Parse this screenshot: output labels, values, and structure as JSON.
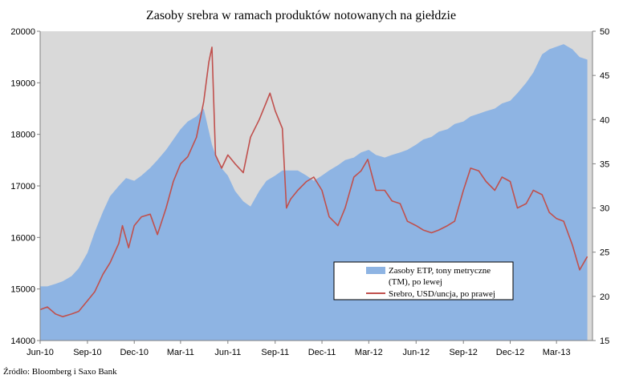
{
  "chart_data": {
    "type": "area+line",
    "title": "Zasoby srebra w ramach produktów notowanych na giełdzie",
    "source": "Źródło: Bloomberg i Saxo Bank",
    "x_ticks": [
      "Jun-10",
      "Sep-10",
      "Dec-10",
      "Mar-11",
      "Jun-11",
      "Sep-11",
      "Dec-11",
      "Mar-12",
      "Jun-12",
      "Sep-12",
      "Dec-12",
      "Mar-13"
    ],
    "y_left": {
      "range": [
        14000,
        20000
      ],
      "ticks": [
        "14000",
        "15000",
        "16000",
        "17000",
        "18000",
        "19000",
        "20000"
      ]
    },
    "y_right": {
      "range": [
        15,
        50
      ],
      "ticks": [
        "15",
        "20",
        "25",
        "30",
        "35",
        "40",
        "45",
        "50"
      ]
    },
    "legend": {
      "placement": "lower-right",
      "area_label_line1": "Zasoby ETP, tony metryczne",
      "area_label_line2": "(TM), po lewej",
      "line_label": "Srebro, USD/uncja, po prawej"
    },
    "colors": {
      "plot_bg": "#d9d9d9",
      "area": "#8eb4e3",
      "line": "#c0504d"
    },
    "series": [
      {
        "name": "Zasoby ETP, tony metryczne (TM), po lewej",
        "axis": "left",
        "kind": "area",
        "x": [
          "2010-06-01",
          "2010-06-15",
          "2010-07-01",
          "2010-07-15",
          "2010-08-01",
          "2010-08-15",
          "2010-09-01",
          "2010-09-15",
          "2010-10-01",
          "2010-10-15",
          "2010-11-01",
          "2010-11-15",
          "2010-12-01",
          "2010-12-15",
          "2011-01-01",
          "2011-01-15",
          "2011-02-01",
          "2011-02-15",
          "2011-03-01",
          "2011-03-15",
          "2011-04-01",
          "2011-04-15",
          "2011-05-01",
          "2011-05-15",
          "2011-06-01",
          "2011-06-15",
          "2011-07-01",
          "2011-07-15",
          "2011-08-01",
          "2011-08-15",
          "2011-09-01",
          "2011-09-15",
          "2011-10-01",
          "2011-10-15",
          "2011-11-01",
          "2011-11-15",
          "2011-12-01",
          "2011-12-15",
          "2012-01-01",
          "2012-01-15",
          "2012-02-01",
          "2012-02-15",
          "2012-03-01",
          "2012-03-15",
          "2012-04-01",
          "2012-04-15",
          "2012-05-01",
          "2012-05-15",
          "2012-06-01",
          "2012-06-15",
          "2012-07-01",
          "2012-07-15",
          "2012-08-01",
          "2012-08-15",
          "2012-09-01",
          "2012-09-15",
          "2012-10-01",
          "2012-10-15",
          "2012-11-01",
          "2012-11-15",
          "2012-12-01",
          "2012-12-15",
          "2013-01-01",
          "2013-01-15",
          "2013-02-01",
          "2013-02-15",
          "2013-03-01",
          "2013-03-15",
          "2013-04-01",
          "2013-04-15",
          "2013-04-30"
        ],
        "values": [
          15050,
          15050,
          15100,
          15150,
          15250,
          15400,
          15700,
          16100,
          16500,
          16800,
          17000,
          17150,
          17100,
          17200,
          17350,
          17500,
          17700,
          17900,
          18100,
          18250,
          18350,
          18500,
          17800,
          17400,
          17200,
          16900,
          16700,
          16600,
          16900,
          17100,
          17200,
          17300,
          17300,
          17300,
          17200,
          17100,
          17200,
          17300,
          17400,
          17500,
          17550,
          17650,
          17700,
          17600,
          17550,
          17600,
          17650,
          17700,
          17800,
          17900,
          17950,
          18050,
          18100,
          18200,
          18250,
          18350,
          18400,
          18450,
          18500,
          18600,
          18650,
          18800,
          19000,
          19200,
          19550,
          19650,
          19700,
          19750,
          19650,
          19500,
          19450
        ]
      },
      {
        "name": "Srebro, USD/uncja, po prawej",
        "axis": "right",
        "kind": "line",
        "x": [
          "2010-06-01",
          "2010-06-15",
          "2010-07-01",
          "2010-07-15",
          "2010-08-01",
          "2010-08-15",
          "2010-09-01",
          "2010-09-15",
          "2010-10-01",
          "2010-10-15",
          "2010-11-01",
          "2010-11-08",
          "2010-11-20",
          "2010-12-01",
          "2010-12-15",
          "2011-01-01",
          "2011-01-15",
          "2011-02-01",
          "2011-02-15",
          "2011-03-01",
          "2011-03-15",
          "2011-04-01",
          "2011-04-15",
          "2011-04-25",
          "2011-05-01",
          "2011-05-08",
          "2011-05-20",
          "2011-06-01",
          "2011-06-15",
          "2011-07-01",
          "2011-07-15",
          "2011-08-01",
          "2011-08-15",
          "2011-08-22",
          "2011-09-01",
          "2011-09-15",
          "2011-09-23",
          "2011-10-01",
          "2011-10-15",
          "2011-11-01",
          "2011-11-15",
          "2011-12-01",
          "2011-12-15",
          "2012-01-01",
          "2012-01-15",
          "2012-02-01",
          "2012-02-15",
          "2012-02-28",
          "2012-03-15",
          "2012-04-01",
          "2012-04-15",
          "2012-05-01",
          "2012-05-15",
          "2012-06-01",
          "2012-06-15",
          "2012-07-01",
          "2012-07-15",
          "2012-08-01",
          "2012-08-15",
          "2012-09-01",
          "2012-09-15",
          "2012-10-01",
          "2012-10-15",
          "2012-11-01",
          "2012-11-15",
          "2012-12-01",
          "2012-12-15",
          "2013-01-01",
          "2013-01-15",
          "2013-02-01",
          "2013-02-15",
          "2013-03-01",
          "2013-03-15",
          "2013-04-01",
          "2013-04-15",
          "2013-04-30"
        ],
        "values": [
          18.5,
          18.8,
          18.0,
          17.7,
          18.0,
          18.3,
          19.5,
          20.5,
          22.5,
          23.8,
          26.0,
          28.0,
          25.5,
          28.0,
          29.0,
          29.3,
          27.0,
          30.0,
          33.0,
          35.0,
          35.8,
          38.0,
          42.0,
          46.5,
          48.2,
          36.0,
          34.5,
          36.0,
          35.0,
          34.0,
          38.0,
          40.0,
          42.0,
          43.0,
          41.0,
          39.0,
          30.0,
          31.0,
          32.0,
          33.0,
          33.5,
          32.0,
          29.0,
          28.0,
          30.0,
          33.5,
          34.2,
          35.5,
          32.0,
          32.0,
          30.8,
          30.5,
          28.5,
          28.0,
          27.5,
          27.2,
          27.5,
          28.0,
          28.5,
          32.0,
          34.5,
          34.2,
          33.0,
          32.0,
          33.5,
          33.0,
          30.0,
          30.5,
          32.0,
          31.5,
          29.5,
          28.8,
          28.5,
          25.8,
          23.0,
          24.5
        ]
      }
    ]
  }
}
